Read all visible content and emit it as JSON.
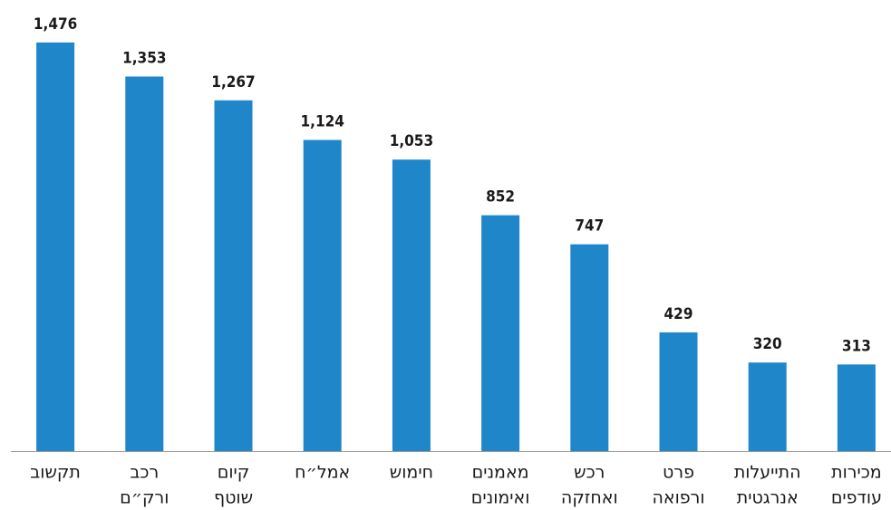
{
  "chart_data": {
    "type": "bar",
    "categories": [
      [
        "תקשוב"
      ],
      [
        "רכב",
        "ורק״ם"
      ],
      [
        "קיום",
        "שוטף"
      ],
      [
        "אמל״ח"
      ],
      [
        "חימוש"
      ],
      [
        "מאמנים",
        "ואימונים"
      ],
      [
        "רכש",
        "ואחזקה"
      ],
      [
        "פרט",
        "ורפואה"
      ],
      [
        "התייעלות",
        "אנרגטית"
      ],
      [
        "מכירות",
        "עודפים"
      ]
    ],
    "values": [
      1476,
      1353,
      1267,
      1124,
      1053,
      852,
      747,
      429,
      320,
      313
    ],
    "value_labels": [
      "1,476",
      "1,353",
      "1,267",
      "1,124",
      "1,053",
      "852",
      "747",
      "429",
      "320",
      "313"
    ],
    "color": "#1f87c9",
    "ylim": [
      0,
      1600
    ]
  }
}
